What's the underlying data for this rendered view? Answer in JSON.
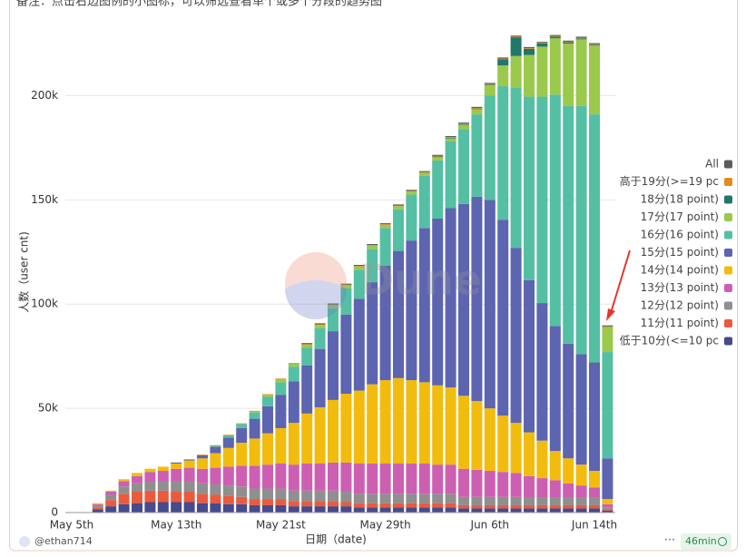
{
  "chart_data": {
    "type": "stacked-bar",
    "note": "备注：点击右边图例的小图标，可以筛选查看单个或多个分段的趋势图",
    "x_label": "日期（date)",
    "y_label": "人数（user cnt)",
    "watermark": "Dune",
    "author": "@ethan714",
    "refresh": "46min",
    "categories": [
      "May 5th",
      null,
      null,
      null,
      null,
      null,
      null,
      null,
      "May 13th",
      null,
      null,
      null,
      null,
      null,
      null,
      null,
      "May 21st",
      null,
      null,
      null,
      null,
      null,
      null,
      null,
      "May 29th",
      null,
      null,
      null,
      null,
      null,
      null,
      null,
      "Jun 6th",
      null,
      null,
      null,
      null,
      null,
      null,
      null,
      "Jun 14th",
      null
    ],
    "ylim": [
      0,
      235000
    ],
    "yticks": [
      {
        "value": 0,
        "label": "0"
      },
      {
        "value": 50000,
        "label": "50k"
      },
      {
        "value": 100000,
        "label": "100k"
      },
      {
        "value": 150000,
        "label": "150k"
      },
      {
        "value": 200000,
        "label": "200k"
      }
    ],
    "grid": true,
    "legend": "right",
    "series": [
      {
        "name": "All",
        "color": "#5b5b5b",
        "values": [
          0,
          0,
          0,
          0,
          0,
          0,
          0,
          0,
          0,
          0,
          0,
          0,
          0,
          0,
          0,
          0,
          0,
          0,
          500,
          500,
          500,
          500,
          500,
          500,
          500,
          500,
          500,
          500,
          500,
          500,
          500,
          500,
          500,
          500,
          500,
          500,
          500,
          500,
          500,
          500,
          500,
          500
        ]
      },
      {
        "name": "高于19分(>=19 pc",
        "color": "#e8891c",
        "values": [
          0,
          0,
          0,
          0,
          0,
          0,
          0,
          0,
          0,
          0,
          300,
          300,
          300,
          300,
          300,
          300,
          300,
          300,
          300,
          300,
          300,
          300,
          300,
          300,
          300,
          300,
          300,
          300,
          300,
          300,
          300,
          300,
          300,
          300,
          300,
          300,
          300,
          300,
          300,
          300,
          300,
          300
        ]
      },
      {
        "name": "18分(18 point)",
        "color": "#21776a",
        "values": [
          0,
          0,
          0,
          0,
          0,
          0,
          0,
          0,
          0,
          0,
          0,
          0,
          0,
          0,
          0,
          0,
          0,
          0,
          0,
          0,
          0,
          0,
          0,
          0,
          0,
          0,
          0,
          0,
          300,
          300,
          300,
          300,
          300,
          3000,
          9000,
          3000,
          1500,
          800,
          600,
          500,
          400,
          0
        ]
      },
      {
        "name": "17分(17 point)",
        "color": "#9bc94b",
        "values": [
          0,
          0,
          0,
          0,
          0,
          0,
          0,
          0,
          0,
          0,
          0,
          0,
          0,
          0,
          500,
          1000,
          1500,
          1500,
          1500,
          1500,
          1500,
          1500,
          1500,
          1500,
          1500,
          1500,
          1500,
          1500,
          1500,
          1500,
          2000,
          2500,
          5000,
          10000,
          15000,
          20000,
          24000,
          27000,
          30000,
          32000,
          33000,
          12000
        ]
      },
      {
        "name": "16分(16 point)",
        "color": "#55bfa4",
        "values": [
          0,
          0,
          0,
          0,
          0,
          0,
          0,
          0,
          0,
          0,
          0,
          500,
          1000,
          2000,
          3000,
          4500,
          6000,
          7000,
          8500,
          10000,
          11000,
          12500,
          14000,
          16000,
          18000,
          20000,
          22000,
          25000,
          28000,
          32000,
          36000,
          39500,
          50000,
          64000,
          77000,
          88000,
          99000,
          111000,
          114000,
          119000,
          119000,
          51000
        ]
      },
      {
        "name": "15分(15 point)",
        "color": "#5d64b0",
        "values": [
          0,
          0,
          0,
          0,
          0,
          0,
          0,
          0,
          500,
          500,
          1500,
          3000,
          5000,
          7000,
          9500,
          13000,
          16000,
          20000,
          23000,
          28000,
          33000,
          38000,
          44000,
          49000,
          55000,
          61000,
          67000,
          74000,
          80000,
          86000,
          92000,
          98000,
          100000,
          94000,
          84000,
          73000,
          66000,
          60000,
          55000,
          53000,
          52000,
          19500
        ]
      },
      {
        "name": "14分(14 point)",
        "color": "#f2bc0e",
        "values": [
          0,
          0,
          500,
          500,
          1000,
          1500,
          1500,
          2000,
          2500,
          3500,
          5000,
          7000,
          9000,
          11000,
          13000,
          15000,
          17000,
          20000,
          24000,
          27000,
          30000,
          33000,
          35000,
          38000,
          40000,
          41000,
          40000,
          39000,
          38000,
          37000,
          35000,
          33000,
          30000,
          27000,
          24000,
          21000,
          18000,
          14000,
          12000,
          10000,
          8000,
          2500
        ]
      },
      {
        "name": "13分(13 point)",
        "color": "#cd5fb3",
        "values": [
          0,
          0,
          500,
          1500,
          2500,
          3500,
          4500,
          5000,
          6000,
          6500,
          7000,
          8000,
          9000,
          10000,
          11000,
          11500,
          12000,
          12500,
          13000,
          13000,
          13500,
          14000,
          14500,
          14500,
          14500,
          14500,
          14500,
          14500,
          14000,
          14000,
          13500,
          13000,
          12500,
          12000,
          11500,
          10500,
          9500,
          8500,
          7000,
          6000,
          5000,
          1500
        ]
      },
      {
        "name": "12分(12 point)",
        "color": "#8f8f8f",
        "values": [
          0,
          0,
          1000,
          2500,
          3500,
          4000,
          4500,
          4500,
          5000,
          5000,
          5000,
          5000,
          5000,
          5000,
          5000,
          5000,
          5000,
          5000,
          5000,
          5000,
          5000,
          5000,
          4500,
          4500,
          4500,
          4500,
          4500,
          4500,
          4500,
          4500,
          4000,
          4000,
          4000,
          4000,
          4000,
          3500,
          3500,
          3500,
          3500,
          3500,
          3500,
          1000
        ]
      },
      {
        "name": "11分(11 point)",
        "color": "#ea5a3d",
        "values": [
          0,
          0,
          1000,
          3000,
          5000,
          5500,
          5500,
          5500,
          5000,
          5000,
          4500,
          4000,
          4000,
          3500,
          3000,
          3000,
          3000,
          2500,
          2500,
          2500,
          2500,
          2000,
          2000,
          2000,
          2000,
          2000,
          2000,
          2000,
          2000,
          2000,
          1500,
          1500,
          1500,
          1500,
          1500,
          1500,
          1500,
          1500,
          1500,
          1500,
          1500,
          500
        ]
      },
      {
        "name": "低于10分(<=10 pc",
        "color": "#464a8f",
        "values": [
          0,
          0,
          1500,
          3000,
          4000,
          4500,
          5000,
          5000,
          5000,
          5000,
          4500,
          4500,
          4000,
          4000,
          3500,
          3500,
          3500,
          3000,
          3000,
          3000,
          3000,
          3000,
          2500,
          2500,
          2500,
          2500,
          2500,
          2500,
          2500,
          2500,
          2000,
          2000,
          2000,
          2000,
          2000,
          2000,
          2000,
          2000,
          2000,
          2000,
          2000,
          1000
        ]
      }
    ]
  }
}
